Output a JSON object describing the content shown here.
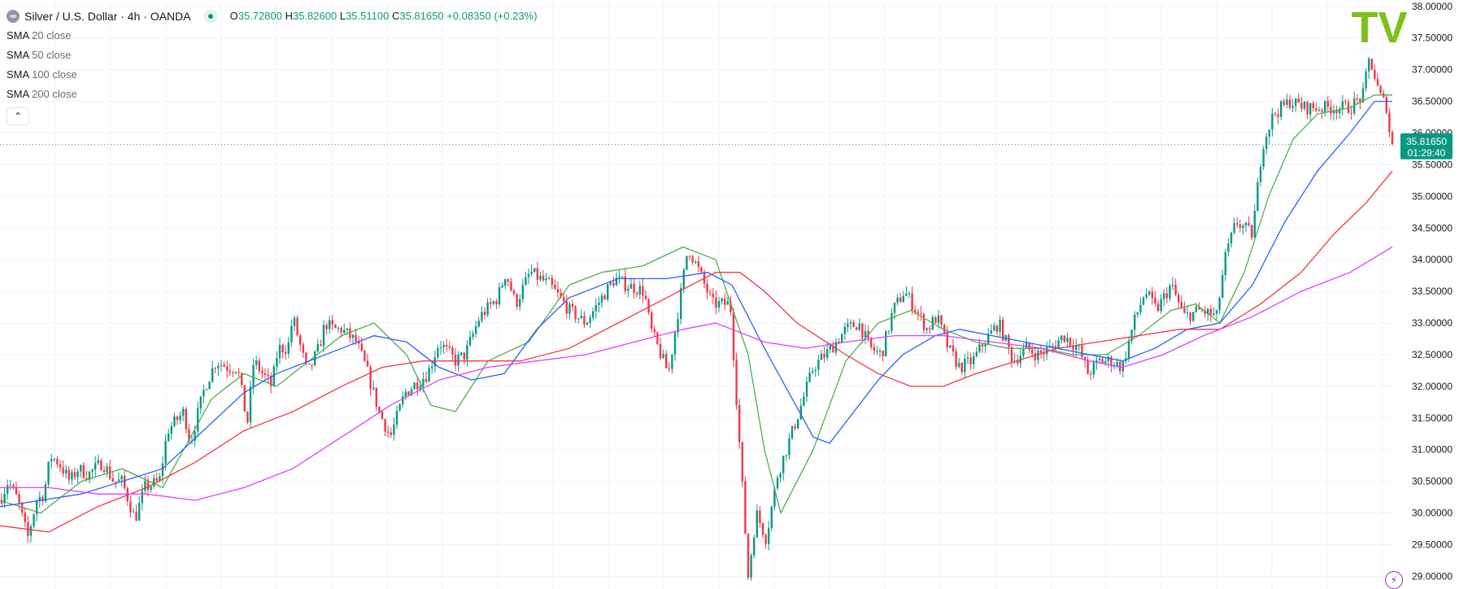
{
  "header": {
    "title": "Silver / U.S. Dollar · 4h · OANDA",
    "symbol_icon": "silver-symbol-icon",
    "open_label": "O",
    "open": "35.72800",
    "high_label": "H",
    "high": "35.82600",
    "low_label": "L",
    "low": "35.51100",
    "close_label": "C",
    "close": "35.81650",
    "change": "+0.08350 (+0.23%)"
  },
  "indicators": [
    {
      "name": "SMA",
      "params": "20 close",
      "color": "#4caf50"
    },
    {
      "name": "SMA",
      "params": "50 close",
      "color": "#2962ff"
    },
    {
      "name": "SMA",
      "params": "100 close",
      "color": "#f23645"
    },
    {
      "name": "SMA",
      "params": "200 close",
      "color": "#e040fb"
    }
  ],
  "price_axis": {
    "ticks": [
      "29.00000",
      "29.50000",
      "30.00000",
      "30.50000",
      "31.00000",
      "31.50000",
      "32.00000",
      "32.50000",
      "33.00000",
      "33.50000",
      "34.00000",
      "34.50000",
      "35.00000",
      "35.50000",
      "36.00000",
      "36.50000",
      "37.00000",
      "37.50000",
      "38.00000"
    ],
    "last_price": "35.81650",
    "countdown": "01:29:40"
  },
  "colors": {
    "up": "#089981",
    "down": "#f23645",
    "grid": "#f0f3fa",
    "last_price_line": "#089981",
    "logo": "#7cc21b"
  },
  "logo": "TV",
  "chart_data": {
    "type": "candlestick",
    "symbol": "Silver / U.S. Dollar",
    "interval": "4h",
    "exchange": "OANDA",
    "ylim": [
      28.8,
      38.1
    ],
    "last_price": 35.8165,
    "series_anchors": {
      "price": [
        [
          0,
          30.2
        ],
        [
          10,
          30.5
        ],
        [
          22,
          30.2
        ],
        [
          34,
          29.6
        ],
        [
          45,
          30.2
        ],
        [
          54,
          30.3
        ],
        [
          62,
          30.9
        ],
        [
          72,
          30.8
        ],
        [
          86,
          30.5
        ],
        [
          96,
          30.7
        ],
        [
          108,
          30.6
        ],
        [
          126,
          30.8
        ],
        [
          140,
          30.5
        ],
        [
          150,
          30.5
        ],
        [
          166,
          29.9
        ],
        [
          178,
          30.4
        ],
        [
          196,
          30.5
        ],
        [
          206,
          31.3
        ],
        [
          226,
          31.6
        ],
        [
          234,
          31.1
        ],
        [
          252,
          32.0
        ],
        [
          266,
          32.4
        ],
        [
          280,
          32.3
        ],
        [
          292,
          32.3
        ],
        [
          304,
          31.4
        ],
        [
          312,
          32.4
        ],
        [
          334,
          32.0
        ],
        [
          342,
          32.6
        ],
        [
          354,
          32.6
        ],
        [
          360,
          33.1
        ],
        [
          378,
          32.2
        ],
        [
          392,
          32.6
        ],
        [
          400,
          33.0
        ],
        [
          410,
          32.9
        ],
        [
          420,
          32.9
        ],
        [
          438,
          32.7
        ],
        [
          450,
          32.3
        ],
        [
          466,
          31.6
        ],
        [
          480,
          31.2
        ],
        [
          498,
          31.9
        ],
        [
          526,
          32.2
        ],
        [
          540,
          32.7
        ],
        [
          560,
          32.4
        ],
        [
          572,
          32.5
        ],
        [
          590,
          33.1
        ],
        [
          612,
          33.4
        ],
        [
          622,
          33.8
        ],
        [
          634,
          33.3
        ],
        [
          652,
          33.8
        ],
        [
          676,
          33.6
        ],
        [
          700,
          33.2
        ],
        [
          720,
          33.0
        ],
        [
          740,
          33.4
        ],
        [
          756,
          33.7
        ],
        [
          770,
          33.6
        ],
        [
          792,
          33.5
        ],
        [
          800,
          32.9
        ],
        [
          822,
          32.2
        ],
        [
          846,
          34.2
        ],
        [
          860,
          33.8
        ],
        [
          876,
          33.3
        ],
        [
          898,
          33.3
        ],
        [
          920,
          29.0
        ],
        [
          930,
          30.0
        ],
        [
          942,
          29.6
        ],
        [
          956,
          30.6
        ],
        [
          980,
          31.5
        ],
        [
          1000,
          32.3
        ],
        [
          1022,
          32.6
        ],
        [
          1040,
          32.9
        ],
        [
          1056,
          33.0
        ],
        [
          1070,
          32.6
        ],
        [
          1084,
          32.5
        ],
        [
          1098,
          33.2
        ],
        [
          1112,
          33.5
        ],
        [
          1122,
          33.3
        ],
        [
          1140,
          32.9
        ],
        [
          1152,
          33.1
        ],
        [
          1166,
          32.6
        ],
        [
          1180,
          32.3
        ],
        [
          1196,
          32.4
        ],
        [
          1210,
          32.7
        ],
        [
          1228,
          33.0
        ],
        [
          1246,
          32.4
        ],
        [
          1262,
          32.6
        ],
        [
          1276,
          32.5
        ],
        [
          1292,
          32.6
        ],
        [
          1308,
          32.8
        ],
        [
          1326,
          32.6
        ],
        [
          1338,
          32.2
        ],
        [
          1352,
          32.4
        ],
        [
          1366,
          32.4
        ],
        [
          1380,
          32.3
        ],
        [
          1394,
          33.0
        ],
        [
          1408,
          33.5
        ],
        [
          1422,
          33.2
        ],
        [
          1440,
          33.6
        ],
        [
          1456,
          33.1
        ],
        [
          1476,
          33.2
        ],
        [
          1496,
          33.1
        ],
        [
          1506,
          34.0
        ],
        [
          1520,
          34.6
        ],
        [
          1540,
          34.4
        ],
        [
          1552,
          35.8
        ],
        [
          1566,
          36.3
        ],
        [
          1586,
          36.5
        ],
        [
          1604,
          36.4
        ],
        [
          1622,
          36.4
        ],
        [
          1640,
          36.4
        ],
        [
          1660,
          36.4
        ],
        [
          1676,
          36.6
        ],
        [
          1684,
          37.2
        ],
        [
          1696,
          36.6
        ],
        [
          1706,
          36.4
        ],
        [
          1710,
          35.8
        ]
      ],
      "sma20": [
        [
          0,
          30.2
        ],
        [
          50,
          30.0
        ],
        [
          100,
          30.5
        ],
        [
          150,
          30.7
        ],
        [
          200,
          30.4
        ],
        [
          260,
          31.8
        ],
        [
          300,
          32.2
        ],
        [
          340,
          32.0
        ],
        [
          380,
          32.4
        ],
        [
          420,
          32.8
        ],
        [
          460,
          33.0
        ],
        [
          500,
          32.5
        ],
        [
          530,
          31.7
        ],
        [
          560,
          31.6
        ],
        [
          600,
          32.4
        ],
        [
          650,
          32.7
        ],
        [
          700,
          33.6
        ],
        [
          740,
          33.8
        ],
        [
          790,
          33.9
        ],
        [
          840,
          34.2
        ],
        [
          880,
          34.0
        ],
        [
          920,
          32.5
        ],
        [
          940,
          31.0
        ],
        [
          960,
          30.0
        ],
        [
          1000,
          31.0
        ],
        [
          1040,
          32.4
        ],
        [
          1080,
          33.0
        ],
        [
          1120,
          33.2
        ],
        [
          1160,
          32.9
        ],
        [
          1200,
          32.7
        ],
        [
          1240,
          32.6
        ],
        [
          1280,
          32.6
        ],
        [
          1320,
          32.5
        ],
        [
          1360,
          32.5
        ],
        [
          1400,
          32.8
        ],
        [
          1440,
          33.2
        ],
        [
          1470,
          33.3
        ],
        [
          1500,
          33.0
        ],
        [
          1530,
          33.8
        ],
        [
          1560,
          35.0
        ],
        [
          1590,
          35.9
        ],
        [
          1620,
          36.3
        ],
        [
          1660,
          36.4
        ],
        [
          1690,
          36.6
        ],
        [
          1712,
          36.6
        ]
      ],
      "sma50": [
        [
          0,
          30.1
        ],
        [
          50,
          30.2
        ],
        [
          100,
          30.3
        ],
        [
          150,
          30.5
        ],
        [
          200,
          30.7
        ],
        [
          250,
          31.3
        ],
        [
          300,
          31.9
        ],
        [
          340,
          32.2
        ],
        [
          380,
          32.4
        ],
        [
          420,
          32.6
        ],
        [
          460,
          32.8
        ],
        [
          500,
          32.7
        ],
        [
          540,
          32.3
        ],
        [
          580,
          32.1
        ],
        [
          620,
          32.2
        ],
        [
          660,
          32.9
        ],
        [
          700,
          33.4
        ],
        [
          760,
          33.7
        ],
        [
          820,
          33.7
        ],
        [
          870,
          33.8
        ],
        [
          900,
          33.6
        ],
        [
          940,
          32.6
        ],
        [
          970,
          31.9
        ],
        [
          1000,
          31.2
        ],
        [
          1020,
          31.1
        ],
        [
          1050,
          31.6
        ],
        [
          1080,
          32.1
        ],
        [
          1110,
          32.5
        ],
        [
          1150,
          32.8
        ],
        [
          1180,
          32.9
        ],
        [
          1220,
          32.8
        ],
        [
          1260,
          32.7
        ],
        [
          1300,
          32.6
        ],
        [
          1340,
          32.5
        ],
        [
          1380,
          32.4
        ],
        [
          1420,
          32.6
        ],
        [
          1460,
          32.9
        ],
        [
          1500,
          33.0
        ],
        [
          1540,
          33.6
        ],
        [
          1580,
          34.6
        ],
        [
          1620,
          35.4
        ],
        [
          1660,
          36.0
        ],
        [
          1690,
          36.5
        ],
        [
          1712,
          36.5
        ]
      ],
      "sma100": [
        [
          0,
          29.8
        ],
        [
          60,
          29.7
        ],
        [
          120,
          30.1
        ],
        [
          180,
          30.4
        ],
        [
          240,
          30.8
        ],
        [
          300,
          31.3
        ],
        [
          360,
          31.6
        ],
        [
          420,
          32.0
        ],
        [
          470,
          32.3
        ],
        [
          520,
          32.4
        ],
        [
          580,
          32.4
        ],
        [
          640,
          32.4
        ],
        [
          700,
          32.6
        ],
        [
          760,
          33.0
        ],
        [
          820,
          33.4
        ],
        [
          880,
          33.8
        ],
        [
          910,
          33.8
        ],
        [
          940,
          33.5
        ],
        [
          980,
          33.0
        ],
        [
          1040,
          32.5
        ],
        [
          1080,
          32.2
        ],
        [
          1120,
          32.0
        ],
        [
          1160,
          32.0
        ],
        [
          1200,
          32.2
        ],
        [
          1250,
          32.4
        ],
        [
          1300,
          32.6
        ],
        [
          1350,
          32.7
        ],
        [
          1400,
          32.8
        ],
        [
          1450,
          32.9
        ],
        [
          1500,
          32.9
        ],
        [
          1550,
          33.3
        ],
        [
          1600,
          33.8
        ],
        [
          1640,
          34.4
        ],
        [
          1680,
          34.9
        ],
        [
          1712,
          35.4
        ]
      ],
      "sma200": [
        [
          0,
          30.4
        ],
        [
          60,
          30.4
        ],
        [
          120,
          30.3
        ],
        [
          180,
          30.3
        ],
        [
          240,
          30.2
        ],
        [
          300,
          30.4
        ],
        [
          360,
          30.7
        ],
        [
          420,
          31.2
        ],
        [
          480,
          31.7
        ],
        [
          540,
          32.1
        ],
        [
          600,
          32.3
        ],
        [
          660,
          32.4
        ],
        [
          720,
          32.5
        ],
        [
          780,
          32.7
        ],
        [
          840,
          32.9
        ],
        [
          880,
          33.0
        ],
        [
          900,
          32.9
        ],
        [
          940,
          32.7
        ],
        [
          990,
          32.6
        ],
        [
          1040,
          32.7
        ],
        [
          1100,
          32.8
        ],
        [
          1160,
          32.8
        ],
        [
          1220,
          32.7
        ],
        [
          1280,
          32.6
        ],
        [
          1340,
          32.4
        ],
        [
          1380,
          32.3
        ],
        [
          1430,
          32.5
        ],
        [
          1480,
          32.8
        ],
        [
          1540,
          33.1
        ],
        [
          1600,
          33.5
        ],
        [
          1660,
          33.8
        ],
        [
          1712,
          34.2
        ]
      ]
    }
  }
}
